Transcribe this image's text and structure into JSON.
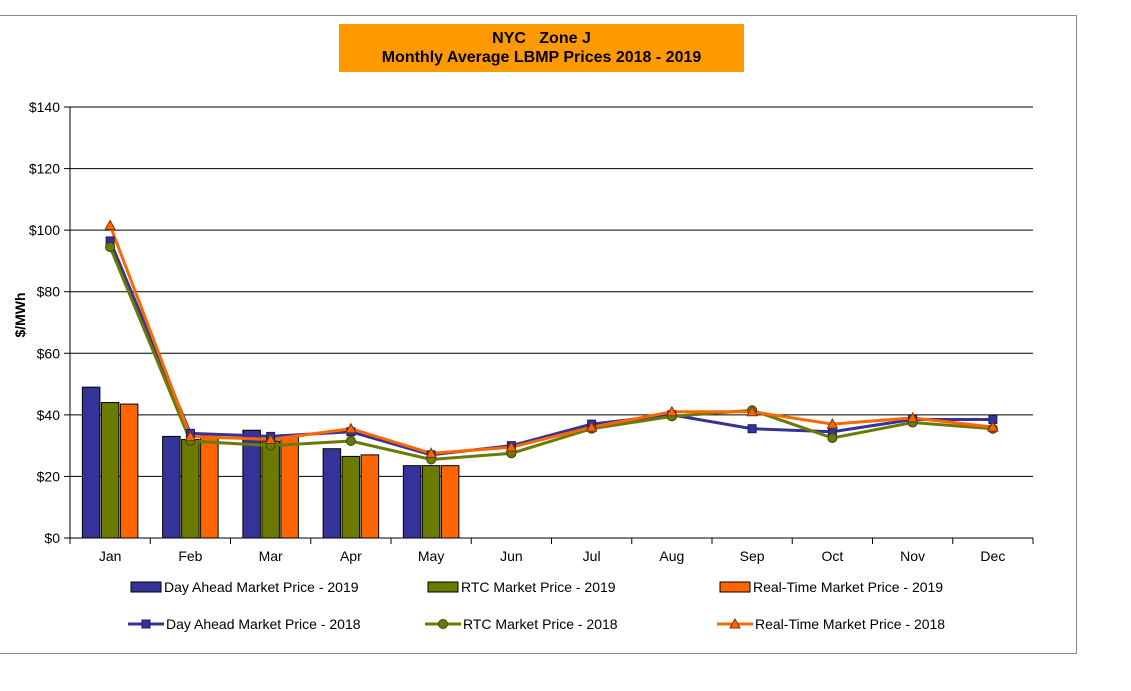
{
  "chart_data": {
    "type": "bar",
    "title_line1": "NYC   Zone J",
    "title_line2": "Monthly Average LBMP Prices 2018 - 2019",
    "ylabel": "$/MWh",
    "xlabel": "",
    "ylim": [
      0,
      140
    ],
    "y_ticks": [
      0,
      20,
      40,
      60,
      80,
      100,
      120,
      140
    ],
    "y_tick_labels": [
      "$0",
      "$20",
      "$40",
      "$60",
      "$80",
      "$100",
      "$120",
      "$140"
    ],
    "categories": [
      "Jan",
      "Feb",
      "Mar",
      "Apr",
      "May",
      "Jun",
      "Jul",
      "Aug",
      "Sep",
      "Oct",
      "Nov",
      "Dec"
    ],
    "grid": true,
    "legend_position": "bottom",
    "bar_series": [
      {
        "name": "Day Ahead Market Price - 2019",
        "color": "#333399",
        "values": [
          49,
          33,
          35,
          29,
          23.5
        ]
      },
      {
        "name": "RTC Market Price - 2019",
        "color": "#6b7a00",
        "values": [
          44,
          32,
          31.5,
          26.5,
          23.5
        ]
      },
      {
        "name": "Real-Time Market Price - 2019",
        "color": "#ff6600",
        "values": [
          43.5,
          33.5,
          33.5,
          27,
          23.5
        ]
      }
    ],
    "line_series": [
      {
        "name": "Day Ahead Market Price - 2018",
        "color": "#333399",
        "marker": "square",
        "values": [
          96.5,
          34,
          33,
          34.5,
          27,
          30,
          37,
          40,
          35.5,
          34.5,
          38.5,
          38.5
        ]
      },
      {
        "name": "RTC Market Price - 2018",
        "color": "#6b7a00",
        "marker": "circle",
        "values": [
          94.5,
          31.5,
          30,
          31.5,
          25.5,
          27.5,
          35.5,
          39.5,
          41.5,
          32.5,
          37.5,
          35.5
        ]
      },
      {
        "name": "Real-Time Market Price - 2018",
        "color": "#ff6600",
        "marker": "triangle",
        "values": [
          101.5,
          33,
          32,
          35.5,
          27.5,
          29.5,
          36,
          41,
          41,
          37,
          39,
          36
        ]
      }
    ]
  }
}
